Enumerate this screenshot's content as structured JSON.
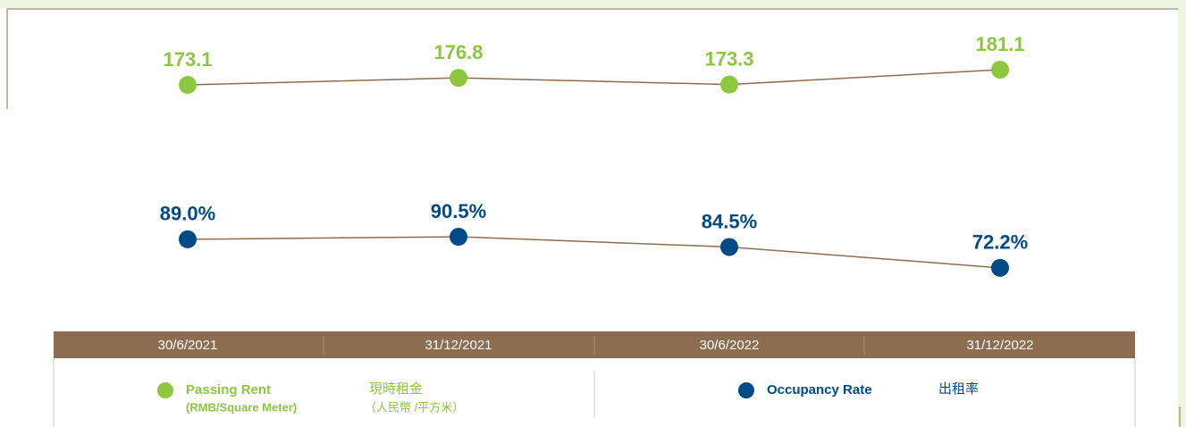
{
  "chart_data": {
    "type": "line",
    "categories": [
      "30/6/2021",
      "31/12/2021",
      "30/6/2022",
      "31/12/2022"
    ],
    "ylim": [
      160,
      190
    ],
    "y2lim": [
      60,
      100
    ],
    "line_color": "#8b6e53",
    "series": [
      {
        "name": "Passing Rent",
        "unit": "(RMB/Square Meter)",
        "name_zh": "現時租金",
        "unit_zh": "（人民幣 /平方米）",
        "color": "#8dc63f",
        "values": [
          173.1,
          176.8,
          173.3,
          181.1
        ]
      },
      {
        "name": "Occupancy Rate",
        "name_zh": "出租率",
        "axis": "y2",
        "color": "#004a87",
        "values": [
          89.0,
          90.5,
          84.5,
          72.2
        ],
        "value_labels": [
          "89.0%",
          "90.5%",
          "84.5%",
          "72.2%"
        ]
      }
    ]
  }
}
